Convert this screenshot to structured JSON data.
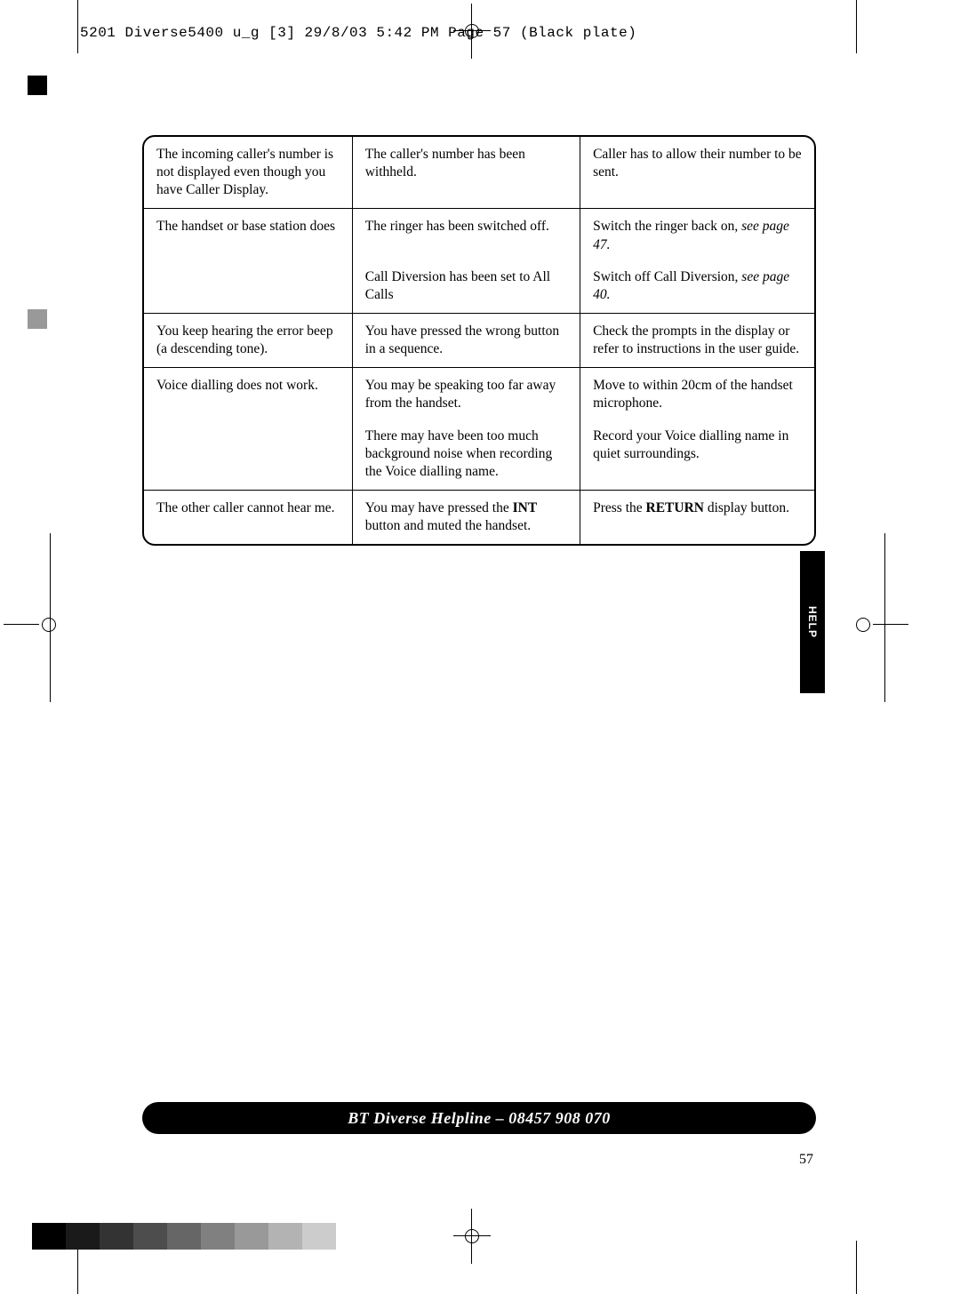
{
  "slug": "5201 Diverse5400  u_g [3]  29/8/03  5:42 PM  Page 57    (Black plate)",
  "table": {
    "rows": [
      {
        "c1": "The incoming caller's number is not displayed even though you have Caller Display.",
        "c2": "The caller's number has been withheld.",
        "c3": "Caller has to allow their number to be sent."
      },
      {
        "c1": "The handset or base station does",
        "c2": "The ringer has been switched off.",
        "c3a": "Switch the ringer back on, ",
        "c3b": "see page 47."
      },
      {
        "sub": true,
        "c1": "",
        "c2": "Call Diversion has been set to All Calls",
        "c3a": "Switch off Call Diversion, ",
        "c3b": "see page 40."
      },
      {
        "c1": "You keep hearing the error beep (a descending tone).",
        "c2": "You have pressed the wrong button in a sequence.",
        "c3": "Check the prompts in the display or refer to instructions in the user guide."
      },
      {
        "c1": "Voice dialling does not work.",
        "c2": "You may be speaking too far away from the handset.",
        "c3": "Move to within 20cm of the handset microphone."
      },
      {
        "sub": true,
        "c1": "",
        "c2": "There may have been too much background noise when recording the Voice dialling name.",
        "c3": "Record your Voice dialling name in quiet surroundings."
      },
      {
        "c1": "The other caller cannot hear me.",
        "c2a": "You may have pressed the ",
        "c2b": "INT",
        "c2c": " button and muted the handset.",
        "c3a": "Press the ",
        "c3b": "RETURN",
        "c3c": " display button."
      }
    ]
  },
  "help_tab": "HELP",
  "footer": "BT Diverse Helpline – 08457 908 070",
  "page_number": "57",
  "swatches": [
    "#000000",
    "#1a1a1a",
    "#333333",
    "#4d4d4d",
    "#666666",
    "#808080",
    "#999999",
    "#b3b3b3",
    "#cccccc"
  ],
  "colors": {
    "text": "#000000",
    "bg": "#ffffff"
  }
}
